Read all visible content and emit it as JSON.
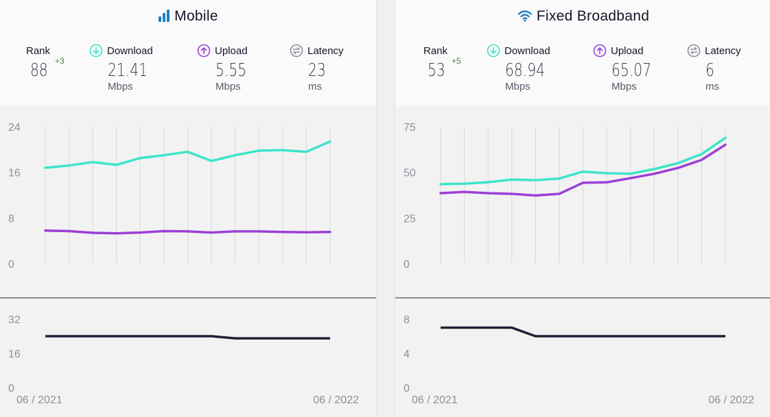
{
  "colors": {
    "download": "#3ce5c9",
    "upload": "#9b40d6",
    "latency": "#1e2133",
    "grid": "#d8d8d8",
    "tick": "#8e8f99"
  },
  "panels": [
    {
      "title": "Mobile",
      "icon": "signal-bars-icon",
      "rank": {
        "label": "Rank",
        "value": "88",
        "change": "+3"
      },
      "download": {
        "label": "Download",
        "value": "21.41",
        "unit": "Mbps"
      },
      "upload": {
        "label": "Upload",
        "value": "5.55",
        "unit": "Mbps"
      },
      "latency": {
        "label": "Latency",
        "value": "23",
        "unit": "ms"
      }
    },
    {
      "title": "Fixed Broadband",
      "icon": "wifi-icon",
      "rank": {
        "label": "Rank",
        "value": "53",
        "change": "+5"
      },
      "download": {
        "label": "Download",
        "value": "68.94",
        "unit": "Mbps"
      },
      "upload": {
        "label": "Upload",
        "value": "65.07",
        "unit": "Mbps"
      },
      "latency": {
        "label": "Latency",
        "value": "6",
        "unit": "ms"
      }
    }
  ],
  "chart_data": [
    {
      "type": "line",
      "panel": "Mobile",
      "title": "",
      "x": [
        "06 / 2021",
        "07 / 2021",
        "08 / 2021",
        "09 / 2021",
        "10 / 2021",
        "11 / 2021",
        "12 / 2021",
        "01 / 2022",
        "02 / 2022",
        "03 / 2022",
        "04 / 2022",
        "05 / 2022",
        "06 / 2022"
      ],
      "x_tick_labels": [
        "06 / 2021",
        "06 / 2022"
      ],
      "ylim": [
        0,
        24
      ],
      "yticks": [
        "0",
        "8",
        "16",
        "24"
      ],
      "grid": "vertical",
      "series": [
        {
          "key": "download",
          "values": [
            16.8,
            17.2,
            17.8,
            17.3,
            18.5,
            19.0,
            19.6,
            18.0,
            19.0,
            19.8,
            19.9,
            19.6,
            21.4
          ]
        },
        {
          "key": "upload",
          "values": [
            5.8,
            5.7,
            5.4,
            5.3,
            5.45,
            5.7,
            5.65,
            5.45,
            5.65,
            5.65,
            5.55,
            5.5,
            5.55
          ]
        }
      ]
    },
    {
      "type": "line",
      "panel": "Mobile",
      "title": "",
      "x": [
        "06 / 2021",
        "07 / 2021",
        "08 / 2021",
        "09 / 2021",
        "10 / 2021",
        "11 / 2021",
        "12 / 2021",
        "01 / 2022",
        "02 / 2022",
        "03 / 2022",
        "04 / 2022",
        "05 / 2022",
        "06 / 2022"
      ],
      "x_tick_labels": [
        "06 / 2021",
        "06 / 2022"
      ],
      "ylim": [
        0,
        32
      ],
      "yticks": [
        "0",
        "16",
        "32"
      ],
      "series": [
        {
          "key": "latency",
          "values": [
            24,
            24,
            24,
            24,
            24,
            24,
            24,
            24,
            23,
            23,
            23,
            23,
            23
          ]
        }
      ]
    },
    {
      "type": "line",
      "panel": "Fixed Broadband",
      "title": "",
      "x": [
        "06 / 2021",
        "07 / 2021",
        "08 / 2021",
        "09 / 2021",
        "10 / 2021",
        "11 / 2021",
        "12 / 2021",
        "01 / 2022",
        "02 / 2022",
        "03 / 2022",
        "04 / 2022",
        "05 / 2022",
        "06 / 2022"
      ],
      "x_tick_labels": [
        "06 / 2021",
        "06 / 2022"
      ],
      "ylim": [
        0,
        75
      ],
      "yticks": [
        "0",
        "25",
        "50",
        "75"
      ],
      "grid": "vertical",
      "series": [
        {
          "key": "download",
          "values": [
            43.5,
            43.8,
            44.6,
            46.0,
            45.7,
            46.6,
            50.4,
            49.5,
            49.2,
            51.8,
            55.0,
            60.0,
            68.9
          ]
        },
        {
          "key": "upload",
          "values": [
            38.6,
            39.3,
            38.6,
            38.2,
            37.3,
            38.2,
            44.3,
            44.5,
            46.8,
            49.2,
            52.4,
            56.8,
            65.1
          ]
        }
      ]
    },
    {
      "type": "line",
      "panel": "Fixed Broadband",
      "title": "",
      "x": [
        "06 / 2021",
        "07 / 2021",
        "08 / 2021",
        "09 / 2021",
        "10 / 2021",
        "11 / 2021",
        "12 / 2021",
        "01 / 2022",
        "02 / 2022",
        "03 / 2022",
        "04 / 2022",
        "05 / 2022",
        "06 / 2022"
      ],
      "x_tick_labels": [
        "06 / 2021",
        "06 / 2022"
      ],
      "ylim": [
        0,
        8
      ],
      "yticks": [
        "0",
        "4",
        "8"
      ],
      "series": [
        {
          "key": "latency",
          "values": [
            7,
            7,
            7,
            7,
            6,
            6,
            6,
            6,
            6,
            6,
            6,
            6,
            6
          ]
        }
      ]
    }
  ]
}
